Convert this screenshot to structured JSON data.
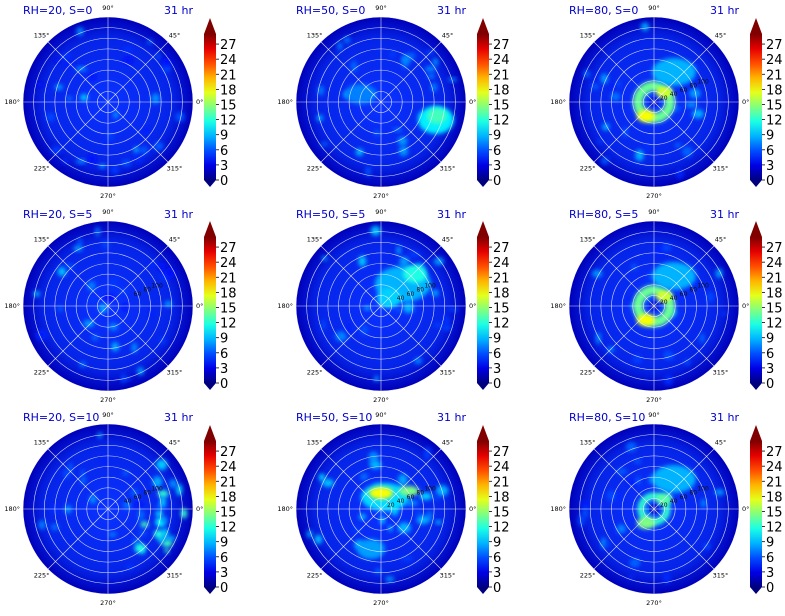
{
  "figure": {
    "colormap": "jet",
    "colors": {
      "title": "#0000cc",
      "grid": "#ffffff",
      "tick_text": "#000000",
      "background": "#ffffff"
    }
  },
  "chart_data": [
    {
      "type": "heatmap",
      "projection": "polar",
      "title": "RH=20, S=0",
      "time_label": "31 hr",
      "angle_ticks": [
        "90°",
        "45°",
        "0°",
        "315°",
        "270°",
        "225°",
        "180°",
        "135°"
      ],
      "radial_tick_labels": [],
      "colorbar_ticks": [
        0,
        3,
        6,
        9,
        12,
        15,
        18,
        21,
        24,
        27
      ],
      "clim": [
        0,
        29
      ],
      "feature": "scattered"
    },
    {
      "type": "heatmap",
      "projection": "polar",
      "title": "RH=50, S=0",
      "time_label": "31 hr",
      "angle_ticks": [
        "90°",
        "45°",
        "0°",
        "315°",
        "270°",
        "225°",
        "180°",
        "135°"
      ],
      "radial_tick_labels": [],
      "colorbar_ticks": [
        0,
        3,
        6,
        9,
        12,
        15,
        18,
        21,
        24,
        27
      ],
      "clim": [
        0,
        29
      ],
      "feature": "blob-east"
    },
    {
      "type": "heatmap",
      "projection": "polar",
      "title": "RH=80, S=0",
      "time_label": "31 hr",
      "angle_ticks": [
        "90°",
        "45°",
        "0°",
        "315°",
        "270°",
        "225°",
        "180°",
        "135°"
      ],
      "radial_tick_labels": [
        "20",
        "40",
        "60",
        "80",
        "100"
      ],
      "colorbar_ticks": [
        0,
        3,
        6,
        9,
        12,
        15,
        18,
        21,
        24,
        27
      ],
      "clim": [
        0,
        29
      ],
      "feature": "eye-strong"
    },
    {
      "type": "heatmap",
      "projection": "polar",
      "title": "RH=20, S=5",
      "time_label": "31 hr",
      "angle_ticks": [
        "90°",
        "45°",
        "0°",
        "315°",
        "270°",
        "225°",
        "180°",
        "135°"
      ],
      "radial_tick_labels": [
        "60",
        "80",
        "100"
      ],
      "colorbar_ticks": [
        0,
        3,
        6,
        9,
        12,
        15,
        18,
        21,
        24,
        27
      ],
      "clim": [
        0,
        29
      ],
      "feature": "scattered"
    },
    {
      "type": "heatmap",
      "projection": "polar",
      "title": "RH=50, S=5",
      "time_label": "31 hr",
      "angle_ticks": [
        "90°",
        "45°",
        "0°",
        "315°",
        "270°",
        "225°",
        "180°",
        "135°"
      ],
      "radial_tick_labels": [
        "40",
        "60",
        "80",
        "100"
      ],
      "colorbar_ticks": [
        0,
        3,
        6,
        9,
        12,
        15,
        18,
        21,
        24,
        27
      ],
      "clim": [
        0,
        29
      ],
      "feature": "blob-northeast"
    },
    {
      "type": "heatmap",
      "projection": "polar",
      "title": "RH=80, S=5",
      "time_label": "31 hr",
      "angle_ticks": [
        "90°",
        "45°",
        "0°",
        "315°",
        "270°",
        "225°",
        "180°",
        "135°"
      ],
      "radial_tick_labels": [
        "20",
        "40",
        "60",
        "80",
        "100"
      ],
      "colorbar_ticks": [
        0,
        3,
        6,
        9,
        12,
        15,
        18,
        21,
        24,
        27
      ],
      "clim": [
        0,
        29
      ],
      "feature": "eye-strong"
    },
    {
      "type": "heatmap",
      "projection": "polar",
      "title": "RH=20, S=10",
      "time_label": "31 hr",
      "angle_ticks": [
        "90°",
        "45°",
        "0°",
        "315°",
        "270°",
        "225°",
        "180°",
        "135°"
      ],
      "radial_tick_labels": [
        "40",
        "60",
        "80",
        "100"
      ],
      "colorbar_ticks": [
        0,
        3,
        6,
        9,
        12,
        15,
        18,
        21,
        24,
        27
      ],
      "clim": [
        0,
        29
      ],
      "feature": "scattered-east"
    },
    {
      "type": "heatmap",
      "projection": "polar",
      "title": "RH=50, S=10",
      "time_label": "31 hr",
      "angle_ticks": [
        "90°",
        "45°",
        "0°",
        "315°",
        "270°",
        "225°",
        "180°",
        "135°"
      ],
      "radial_tick_labels": [
        "20",
        "40",
        "60",
        "80",
        "100"
      ],
      "colorbar_ticks": [
        0,
        3,
        6,
        9,
        12,
        15,
        18,
        21,
        24,
        27
      ],
      "clim": [
        0,
        29
      ],
      "feature": "blob-northwest"
    },
    {
      "type": "heatmap",
      "projection": "polar",
      "title": "RH=80, S=10",
      "time_label": "31 hr",
      "angle_ticks": [
        "90°",
        "45°",
        "0°",
        "315°",
        "270°",
        "225°",
        "180°",
        "135°"
      ],
      "radial_tick_labels": [
        "20",
        "40",
        "60",
        "80",
        "100"
      ],
      "colorbar_ticks": [
        0,
        3,
        6,
        9,
        12,
        15,
        18,
        21,
        24,
        27
      ],
      "clim": [
        0,
        29
      ],
      "feature": "eye-weak"
    }
  ]
}
